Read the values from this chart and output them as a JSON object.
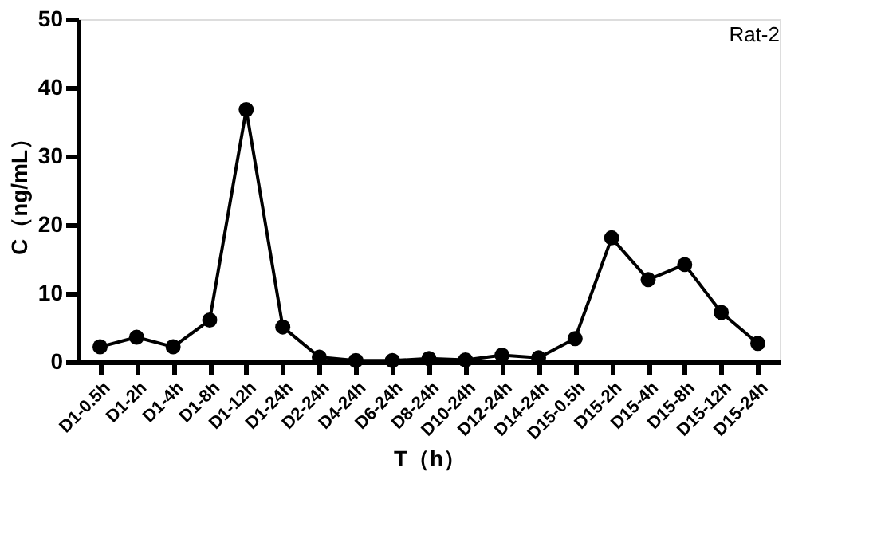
{
  "chart_data": {
    "type": "line",
    "xlabel": "T（h）",
    "ylabel": "C（ng/mL）",
    "annotations": [
      "Rat-2"
    ],
    "categories": [
      "D1-0.5h",
      "D1-2h",
      "D1-4h",
      "D1-8h",
      "D1-12h",
      "D1-24h",
      "D2-24h",
      "D4-24h",
      "D6-24h",
      "D8-24h",
      "D10-24h",
      "D12-24h",
      "D14-24h",
      "D15-0.5h",
      "D15-2h",
      "D15-4h",
      "D15-8h",
      "D15-12h",
      "D15-24h"
    ],
    "series": [
      {
        "color": "#000000",
        "values": [
          2.2,
          3.6,
          2.2,
          6.1,
          36.8,
          5.1,
          0.7,
          0.2,
          0.2,
          0.5,
          0.3,
          1.0,
          0.6,
          3.4,
          18.1,
          12.0,
          14.2,
          7.2,
          2.7
        ]
      }
    ],
    "ylim": [
      0,
      50
    ],
    "yticks": [
      0,
      10,
      20,
      30,
      40,
      50
    ],
    "grid": false,
    "marker": "circle",
    "line_style": "solid"
  }
}
